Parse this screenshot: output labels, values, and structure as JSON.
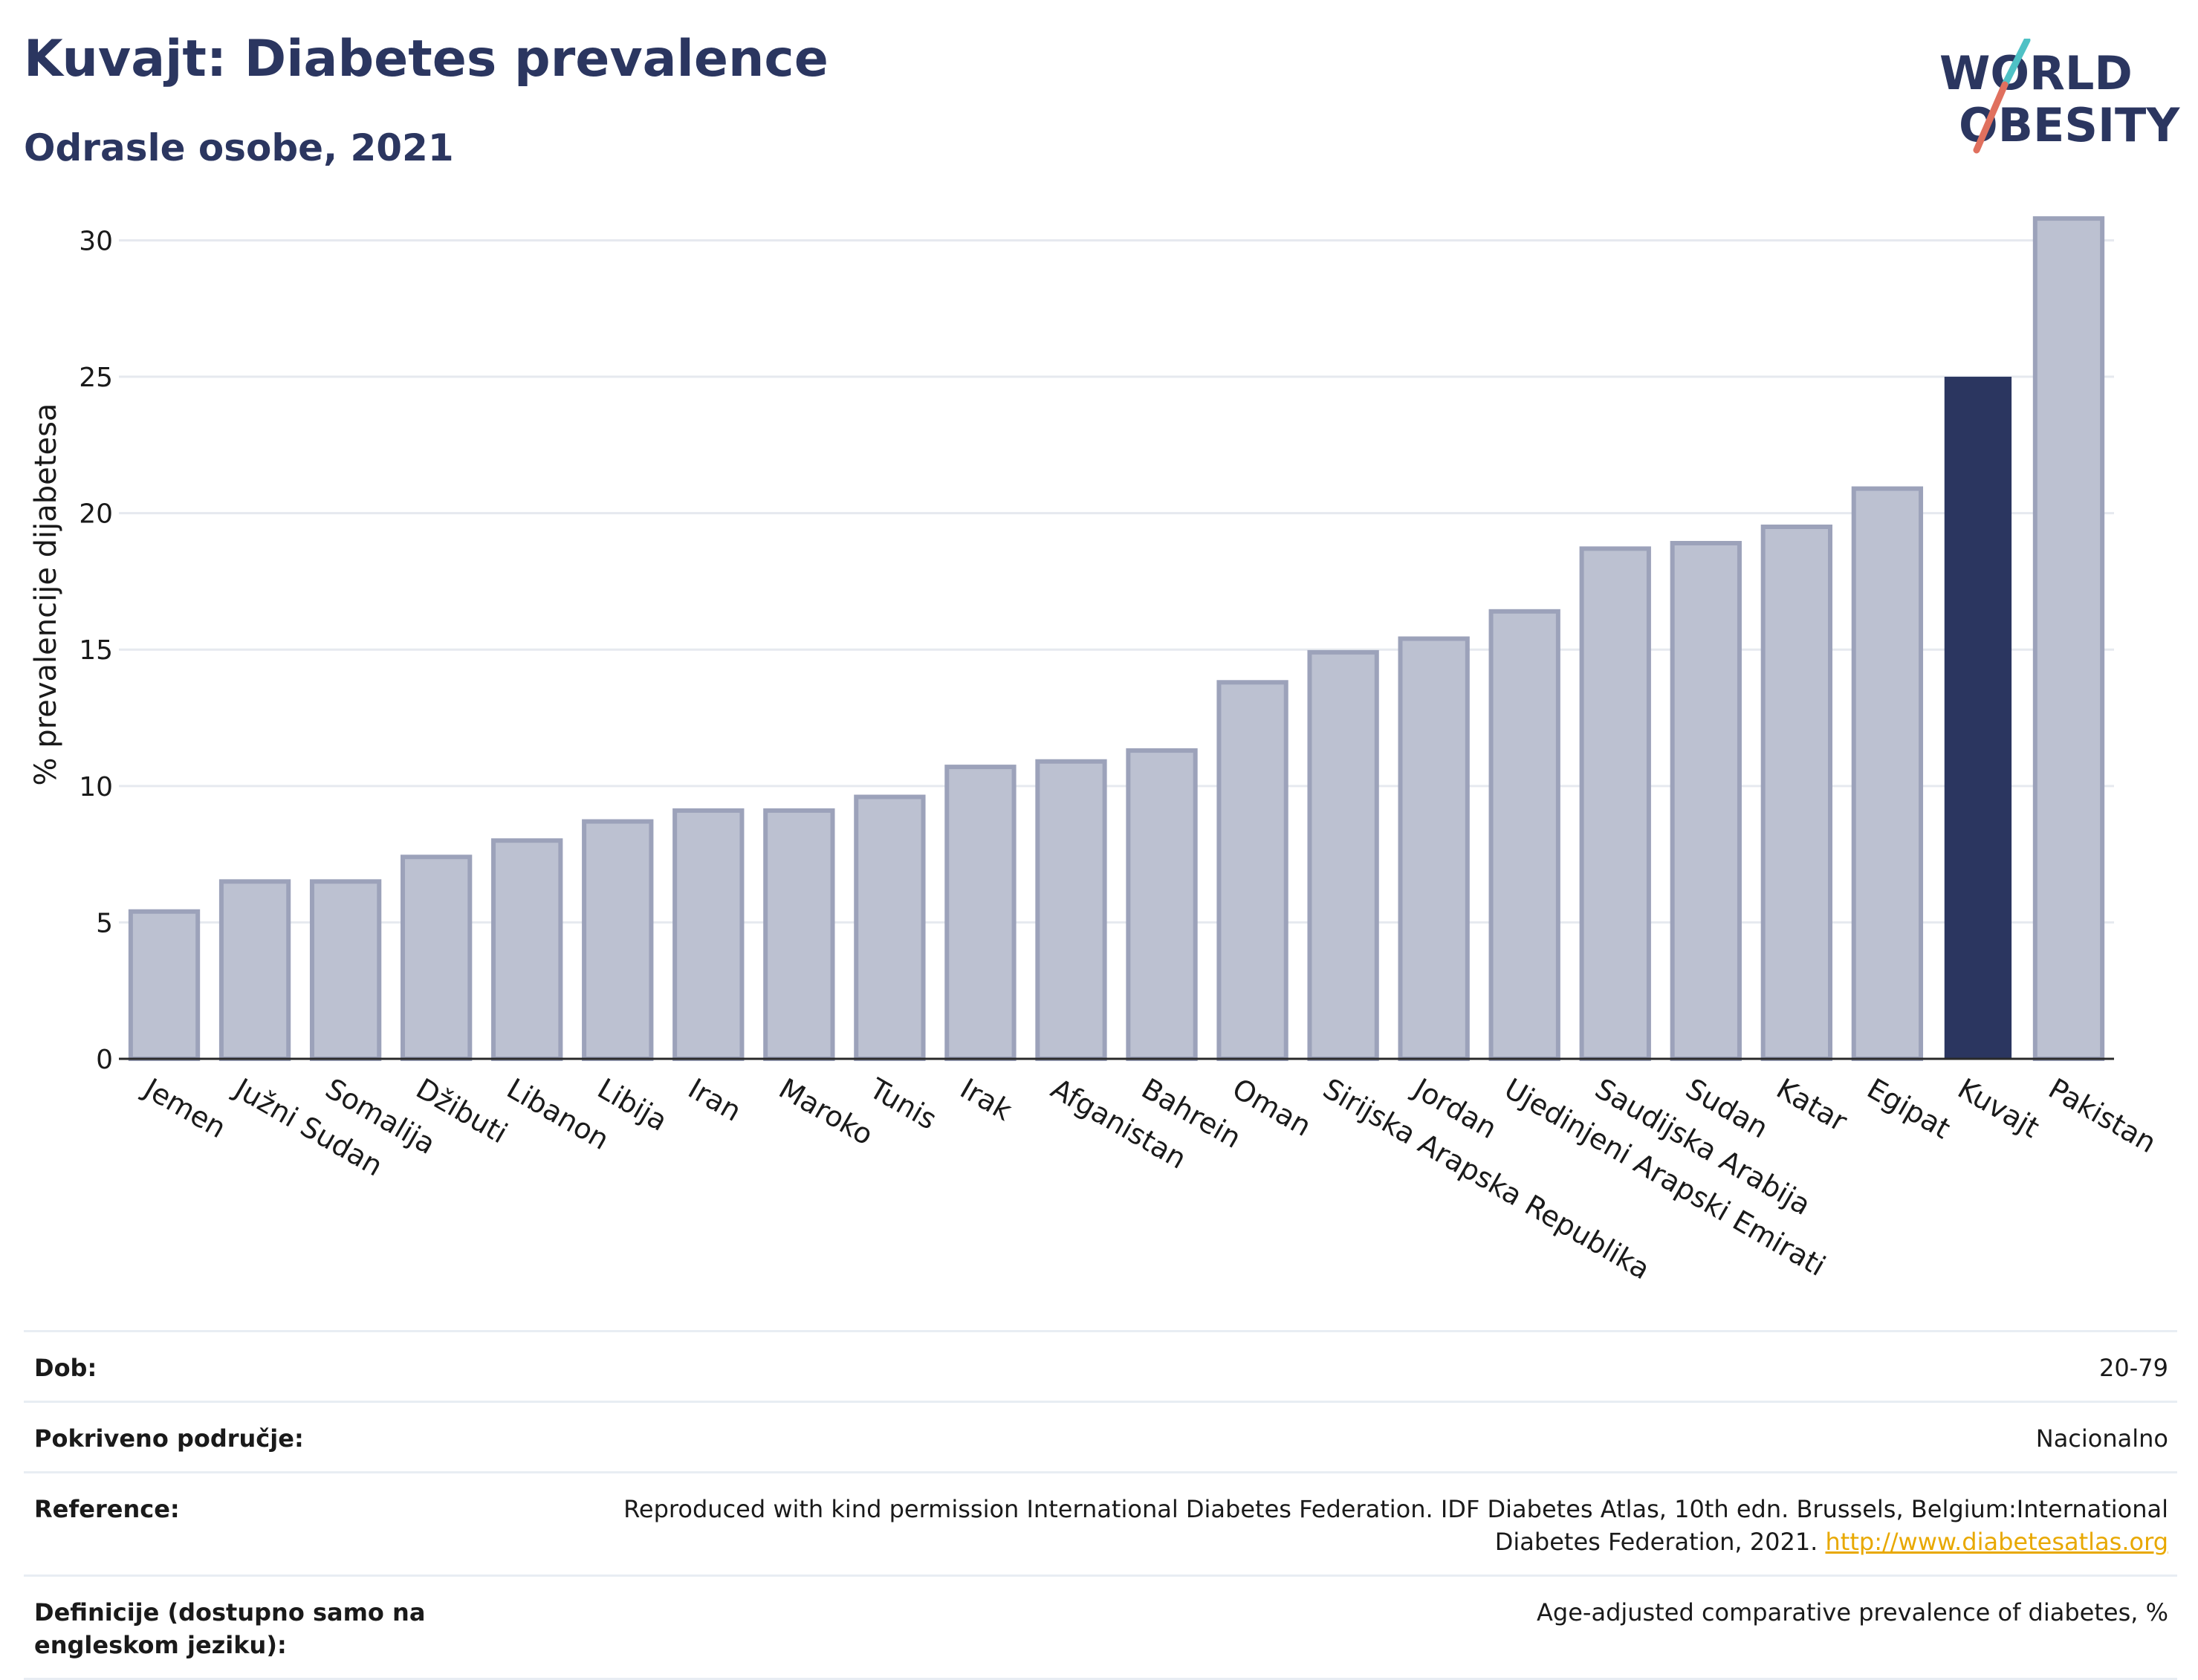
{
  "header": {
    "title": "Kuvajt: Diabetes prevalence",
    "subtitle": "Odrasle osobe, 2021"
  },
  "logo": {
    "line1": "WORLD",
    "line2": "OBESITY"
  },
  "chart_data": {
    "type": "bar",
    "ylabel": "% prevalencije dijabetesa",
    "xlabel": "",
    "ylim": [
      0,
      32
    ],
    "yticks": [
      0,
      5,
      10,
      15,
      20,
      25,
      30
    ],
    "categories": [
      "Jemen",
      "Južni Sudan",
      "Somalija",
      "Džibuti",
      "Libanon",
      "Libija",
      "Iran",
      "Maroko",
      "Tunis",
      "Irak",
      "Afganistan",
      "Bahrein",
      "Oman",
      "Sirijska Arapska Republika",
      "Jordan",
      "Ujedinjeni Arapski Emirati",
      "Saudijska Arabija",
      "Sudan",
      "Katar",
      "Egipat",
      "Kuvajt",
      "Pakistan"
    ],
    "values": [
      5.4,
      6.5,
      6.5,
      7.4,
      8.0,
      8.7,
      9.1,
      9.1,
      9.6,
      10.7,
      10.9,
      11.3,
      13.8,
      14.9,
      15.4,
      16.4,
      18.7,
      18.9,
      19.5,
      20.9,
      25.0,
      30.8
    ],
    "highlight": "Kuvajt",
    "colors": {
      "bar": "#bcc1d1",
      "bar_border": "#9ca2ba",
      "highlight": "#2b3660",
      "grid": "#e6e9ef"
    },
    "grid": true,
    "legend": "none"
  },
  "info": [
    {
      "key": "Dob:",
      "value": "20-79"
    },
    {
      "key": "Pokriveno područje:",
      "value": "Nacionalno"
    },
    {
      "key": "Reference:",
      "value": "Reproduced with kind permission International Diabetes Federation.  IDF Diabetes Atlas, 10th edn. Brussels, Belgium:International Diabetes Federation, 2021.",
      "link": "http://www.diabetesatlas.org"
    },
    {
      "key": "Definicije (dostupno samo na engleskom jeziku):",
      "value": "Age-adjusted comparative prevalence of diabetes, %"
    }
  ]
}
